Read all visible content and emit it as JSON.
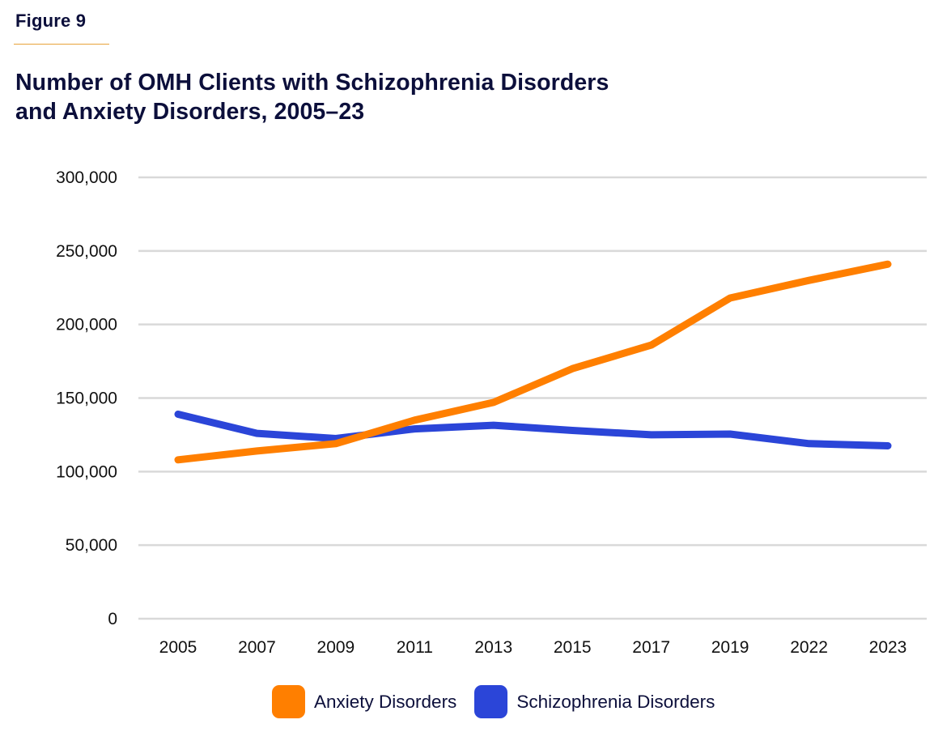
{
  "figure_label": "Figure 9",
  "chart_data": {
    "type": "line",
    "title": "Number of OMH Clients with Schizophrenia Disorders and Anxiety Disorders, 2005–23",
    "title_lines": [
      "Number of OMH Clients with Schizophrenia Disorders",
      "and Anxiety Disorders, 2005–23"
    ],
    "xlabel": "",
    "ylabel": "",
    "categories": [
      "2005",
      "2007",
      "2009",
      "2011",
      "2013",
      "2015",
      "2017",
      "2019",
      "2022",
      "2023"
    ],
    "ylim": [
      0,
      300000
    ],
    "yticks": [
      0,
      50000,
      100000,
      150000,
      200000,
      250000,
      300000
    ],
    "ytick_labels": [
      "0",
      "50,000",
      "100,000",
      "150,000",
      "200,000",
      "250,000",
      "300,000"
    ],
    "grid": true,
    "legend_position": "bottom",
    "series": [
      {
        "name": "Anxiety Disorders",
        "color": "#ff7f00",
        "values": [
          108000,
          114000,
          119000,
          135000,
          147000,
          170000,
          186000,
          218000,
          230000,
          241000
        ]
      },
      {
        "name": "Schizophrenia Disorders",
        "color": "#2b45d8",
        "values": [
          139000,
          126000,
          122500,
          129000,
          131500,
          128000,
          125000,
          125500,
          119000,
          117500
        ]
      }
    ]
  },
  "colors": {
    "title": "#0c0f3b",
    "rule": "#e8a33a",
    "gridline": "#d9d9d9"
  }
}
